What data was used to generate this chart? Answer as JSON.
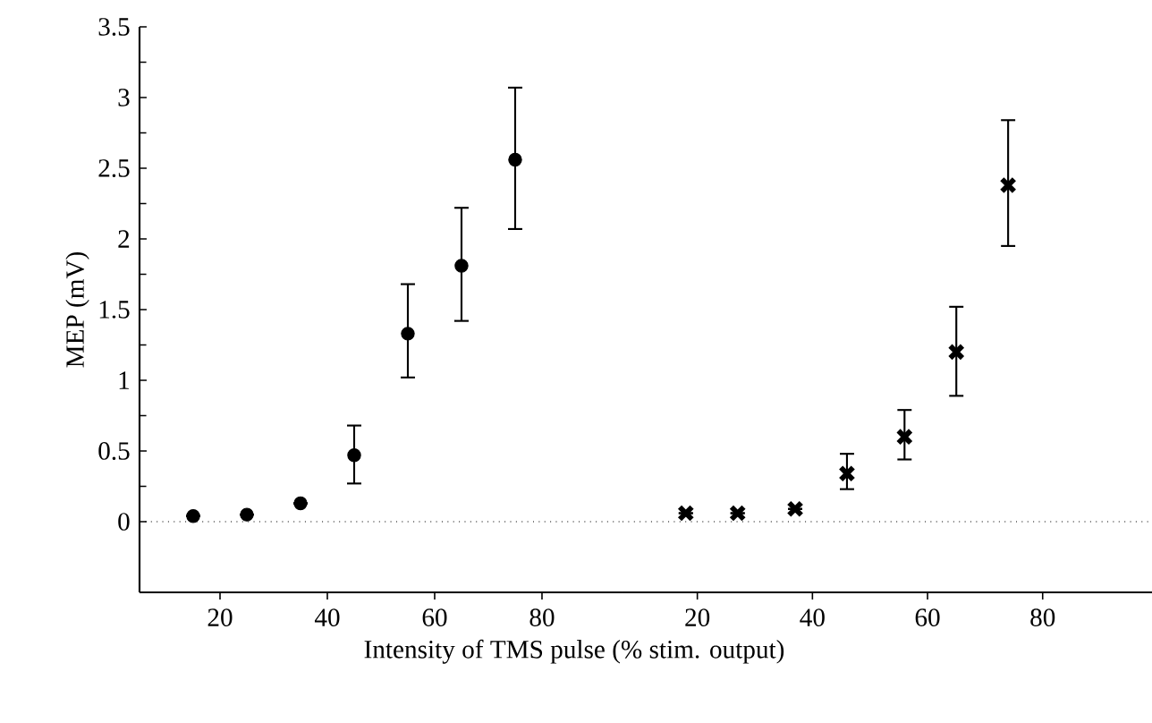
{
  "chart_data": [
    {
      "type": "scatter",
      "ylabel": "MEP (mV)",
      "xlabel": "Intensity of TMS pulse (% stim. output)",
      "marker": "circle",
      "xlim": [
        5,
        95
      ],
      "ylim": [
        -0.5,
        3.5
      ],
      "xticks": [
        20,
        40,
        60,
        80
      ],
      "yticks": [
        0,
        0.5,
        1,
        1.5,
        2,
        2.5,
        3,
        3.5
      ],
      "ref_lines": [
        {
          "axis": "y",
          "value": 0,
          "line_style": "dotted"
        }
      ],
      "series": [
        {
          "color": "#000000",
          "x": [
            15,
            25,
            35,
            45,
            55,
            65,
            75
          ],
          "values": [
            0.04,
            0.05,
            0.13,
            0.47,
            1.33,
            1.81,
            2.56
          ],
          "errors": [
            null,
            null,
            null,
            [
              0.27,
              0.68
            ],
            [
              1.02,
              1.68
            ],
            [
              1.42,
              2.22
            ],
            [
              2.07,
              3.07
            ]
          ]
        }
      ]
    },
    {
      "type": "scatter",
      "marker": "cross",
      "tick_labels": "x",
      "xlim": [
        7,
        99
      ],
      "ylim": [
        -0.5,
        3.5
      ],
      "xticks": [
        20,
        40,
        60,
        80
      ],
      "ref_lines": [
        {
          "axis": "y",
          "value": 0,
          "line_style": "dotted"
        }
      ],
      "series": [
        {
          "color": "#000000",
          "x": [
            18,
            27,
            37,
            46,
            56,
            65,
            74
          ],
          "values": [
            0.06,
            0.06,
            0.09,
            0.34,
            0.6,
            1.2,
            2.38
          ],
          "errors": [
            null,
            null,
            null,
            [
              0.23,
              0.48
            ],
            [
              0.44,
              0.79
            ],
            [
              0.89,
              1.52
            ],
            [
              1.95,
              2.84
            ]
          ]
        }
      ]
    }
  ]
}
